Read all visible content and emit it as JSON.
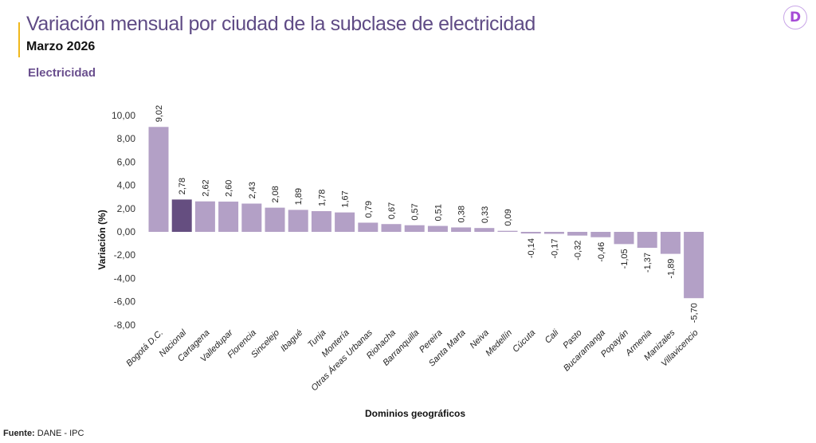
{
  "header": {
    "title": "Variación mensual por ciudad de la subclase de electricidad",
    "subtitle": "Marzo 2026",
    "section": "Electricidad",
    "logo_letter": "D",
    "accent_color": "#f0b81c"
  },
  "footer": {
    "source_label": "Fuente:",
    "source_value": " DANE - IPC"
  },
  "chart_data": {
    "type": "bar",
    "xlabel": "Dominios geográficos",
    "ylabel": "Variación (%)",
    "ylim": [
      -8,
      10
    ],
    "yticks": [
      "10,00",
      "8,00",
      "6,00",
      "4,00",
      "2,00",
      "0,00",
      "-2,00",
      "-4,00",
      "-6,00",
      "-8,00"
    ],
    "grid": false,
    "colors": {
      "default": "#b3a0c6",
      "highlight": "#654e80"
    },
    "highlight": "Nacional",
    "categories": [
      "Bogotá D.C.",
      "Nacional",
      "Cartagena",
      "Valledupar",
      "Florencia",
      "Sincelejo",
      "Ibagué",
      "Tunja",
      "Montería",
      "Otras Áreas Urbanas",
      "Riohacha",
      "Barranquilla",
      "Pereira",
      "Santa Marta",
      "Neiva",
      "Medellín",
      "Cúcuta",
      "Cali",
      "Pasto",
      "Bucaramanga",
      "Popayán",
      "Armenia",
      "Manizales",
      "Villavicencio"
    ],
    "values": [
      9.02,
      2.78,
      2.62,
      2.6,
      2.43,
      2.08,
      1.89,
      1.78,
      1.67,
      0.79,
      0.67,
      0.57,
      0.51,
      0.38,
      0.33,
      0.09,
      -0.14,
      -0.17,
      -0.32,
      -0.46,
      -1.05,
      -1.37,
      -1.89,
      -5.7
    ],
    "labels": [
      "9,02",
      "2,78",
      "2,62",
      "2,60",
      "2,43",
      "2,08",
      "1,89",
      "1,78",
      "1,67",
      "0,79",
      "0,67",
      "0,57",
      "0,51",
      "0,38",
      "0,33",
      "0,09",
      "-0,14",
      "-0,17",
      "-0,32",
      "-0,46",
      "-1,05",
      "-1,37",
      "-1,89",
      "-5,70"
    ]
  }
}
